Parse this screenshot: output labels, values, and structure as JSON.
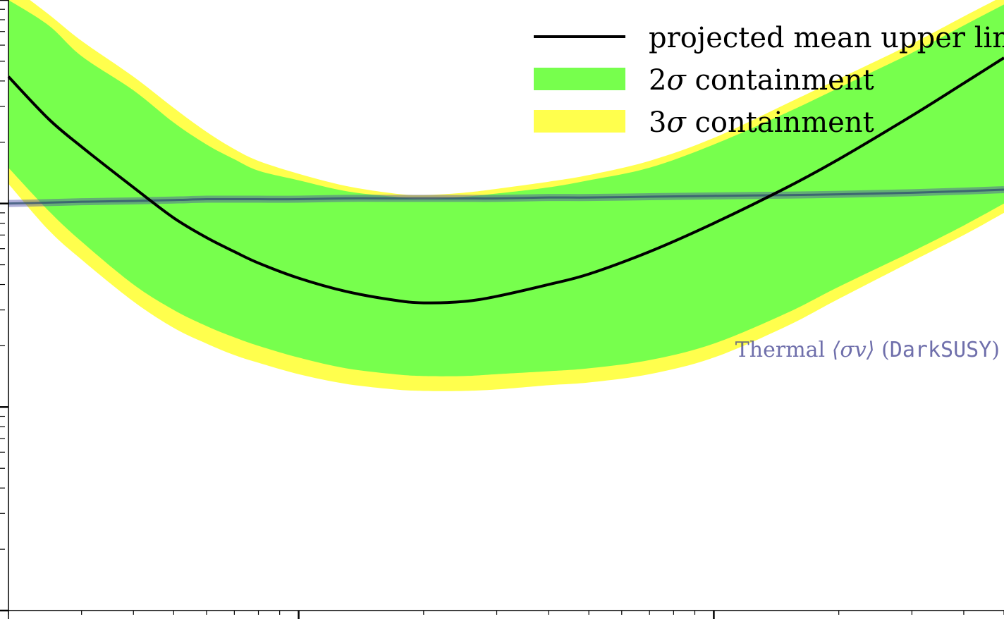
{
  "chart_data": {
    "type": "area",
    "x_scale": "log",
    "y_scale": "log",
    "xlim": [
      20,
      5000
    ],
    "ylim": [
      1e-27,
      1e-24
    ],
    "title": "",
    "xlabel": "",
    "ylabel": "",
    "grid": false,
    "legend_position": "top-right",
    "x": [
      20,
      25,
      30,
      40,
      50,
      60,
      70,
      80,
      100,
      130,
      170,
      200,
      250,
      300,
      400,
      500,
      700,
      1000,
      1500,
      2000,
      3000,
      4000,
      5000
    ],
    "series": [
      {
        "name": "projected mean upper limit",
        "kind": "line",
        "color": "#000000",
        "values": [
          4.2e-25,
          2.6e-25,
          1.9e-25,
          1.2e-25,
          8.5e-26,
          6.8e-26,
          5.8e-26,
          5.1e-26,
          4.3e-26,
          3.7e-26,
          3.35e-26,
          3.25e-26,
          3.3e-26,
          3.5e-26,
          4e-26,
          4.5e-26,
          5.8e-26,
          8e-26,
          1.2e-25,
          1.65e-25,
          2.7e-25,
          3.9e-25,
          5.2e-25
        ]
      },
      {
        "name": "2σ containment",
        "kind": "band",
        "color": "#77ff4d",
        "upper": [
          1e-24,
          7.5e-25,
          5.3e-25,
          3.6e-25,
          2.5e-25,
          1.95e-25,
          1.65e-25,
          1.45e-25,
          1.3e-25,
          1.15e-25,
          1.08e-25,
          1.05e-25,
          1.08e-25,
          1.12e-25,
          1.2e-25,
          1.3e-25,
          1.5e-25,
          1.95e-25,
          2.8e-25,
          3.7e-25,
          5.5e-25,
          7.5e-25,
          9.5e-25
        ],
        "lower": [
          1.5e-25,
          9.2e-26,
          6.5e-26,
          4e-26,
          3e-26,
          2.5e-26,
          2.2e-26,
          2e-26,
          1.75e-26,
          1.55e-26,
          1.45e-26,
          1.42e-26,
          1.42e-26,
          1.45e-26,
          1.5e-26,
          1.55e-26,
          1.7e-26,
          2.05e-26,
          2.9e-26,
          3.9e-26,
          5.8e-26,
          7.8e-26,
          1e-25
        ]
      },
      {
        "name": "3σ containment",
        "kind": "band",
        "color": "#ffff4d",
        "upper": [
          1.2e-24,
          8.5e-25,
          6.3e-25,
          4.2e-25,
          2.95e-25,
          2.25e-25,
          1.85e-25,
          1.62e-25,
          1.4e-25,
          1.22e-25,
          1.12e-25,
          1.1e-25,
          1.13e-25,
          1.18e-25,
          1.28e-25,
          1.38e-25,
          1.62e-25,
          2.1e-25,
          3.1e-25,
          4.1e-25,
          6.1e-25,
          8.3e-25,
          1.05e-24
        ],
        "lower": [
          1.25e-25,
          7.4e-26,
          5.3e-26,
          3.3e-26,
          2.45e-26,
          2.05e-26,
          1.8e-26,
          1.65e-26,
          1.45e-26,
          1.3e-26,
          1.22e-26,
          1.2e-26,
          1.2e-26,
          1.22e-26,
          1.28e-26,
          1.32e-26,
          1.45e-26,
          1.75e-26,
          2.5e-26,
          3.4e-26,
          5.2e-26,
          7e-26,
          9e-26
        ]
      },
      {
        "name": "Thermal ⟨σv⟩ (DarkSUSY)",
        "kind": "line",
        "color": "#4c4ca6",
        "values": [
          1e-25,
          1.01e-25,
          1.02e-25,
          1.03e-25,
          1.04e-25,
          1.05e-25,
          1.05e-25,
          1.05e-25,
          1.05e-25,
          1.06e-25,
          1.06e-25,
          1.06e-25,
          1.06e-25,
          1.06e-25,
          1.07e-25,
          1.07e-25,
          1.08e-25,
          1.09e-25,
          1.1e-25,
          1.11e-25,
          1.13e-25,
          1.15e-25,
          1.17e-25
        ]
      }
    ],
    "legend": [
      {
        "label": "projected mean upper limit",
        "marker": "line",
        "color": "#000000"
      },
      {
        "label_num": "2",
        "label_sym": "σ",
        "label_rest": " containment",
        "marker": "patch",
        "color": "#77ff4d"
      },
      {
        "label_num": "3",
        "label_sym": "σ",
        "label_rest": " containment",
        "marker": "patch",
        "color": "#ffff4d"
      }
    ],
    "annotation": {
      "prefix": "Thermal ",
      "sigma_v": "⟨σv⟩",
      "open": " (",
      "code": "DarkSUSY",
      "close": ")"
    }
  }
}
